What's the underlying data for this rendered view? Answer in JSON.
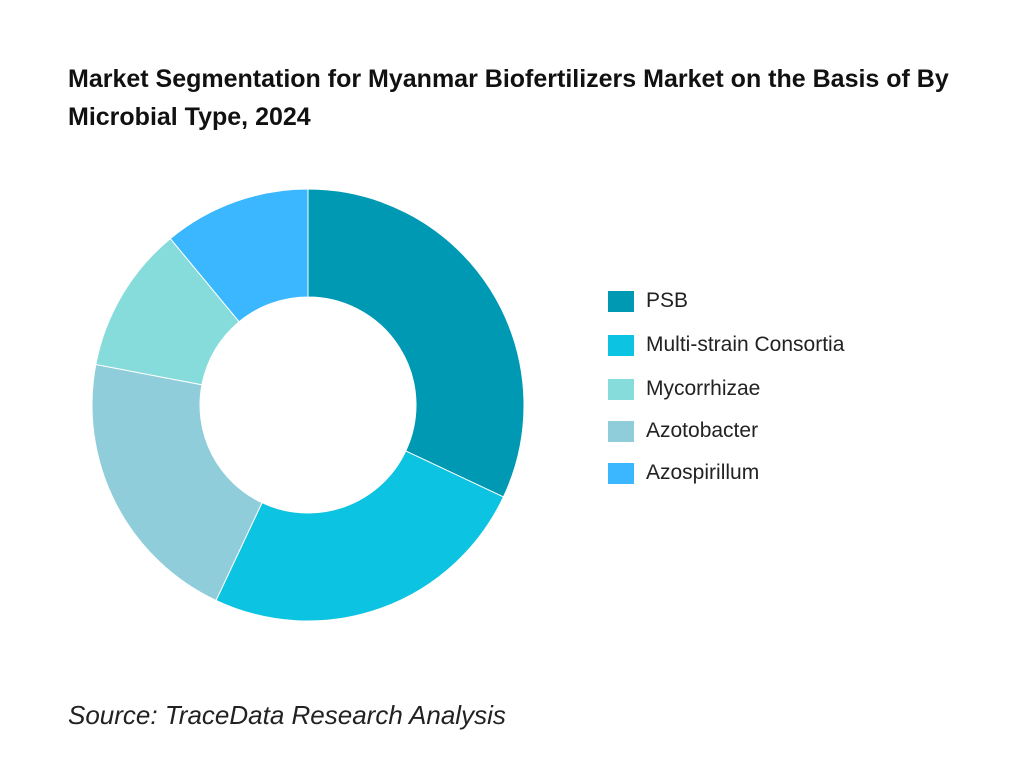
{
  "title": "Market Segmentation for Myanmar Biofertilizers Market on the Basis of By Microbial Type, 2024",
  "source": "Source: TraceData Research Analysis",
  "chart_data": {
    "type": "pie",
    "donut": true,
    "title": "Market Segmentation for Myanmar Biofertilizers Market on the Basis of By Microbial Type, 2024",
    "legend_position": "right",
    "categories": [
      "PSB",
      "Multi-strain Consortia",
      "Mycorrhizae",
      "Azotobacter",
      "Azospirillum"
    ],
    "values": [
      32,
      25,
      11,
      21,
      11
    ],
    "colors": [
      "#0099B4",
      "#0CC3E1",
      "#86DCDA",
      "#8ECDD9",
      "#3AB7FF"
    ],
    "slice_order": [
      "PSB",
      "Multi-strain Consortia",
      "Azotobacter",
      "Mycorrhizae",
      "Azospirillum"
    ]
  }
}
